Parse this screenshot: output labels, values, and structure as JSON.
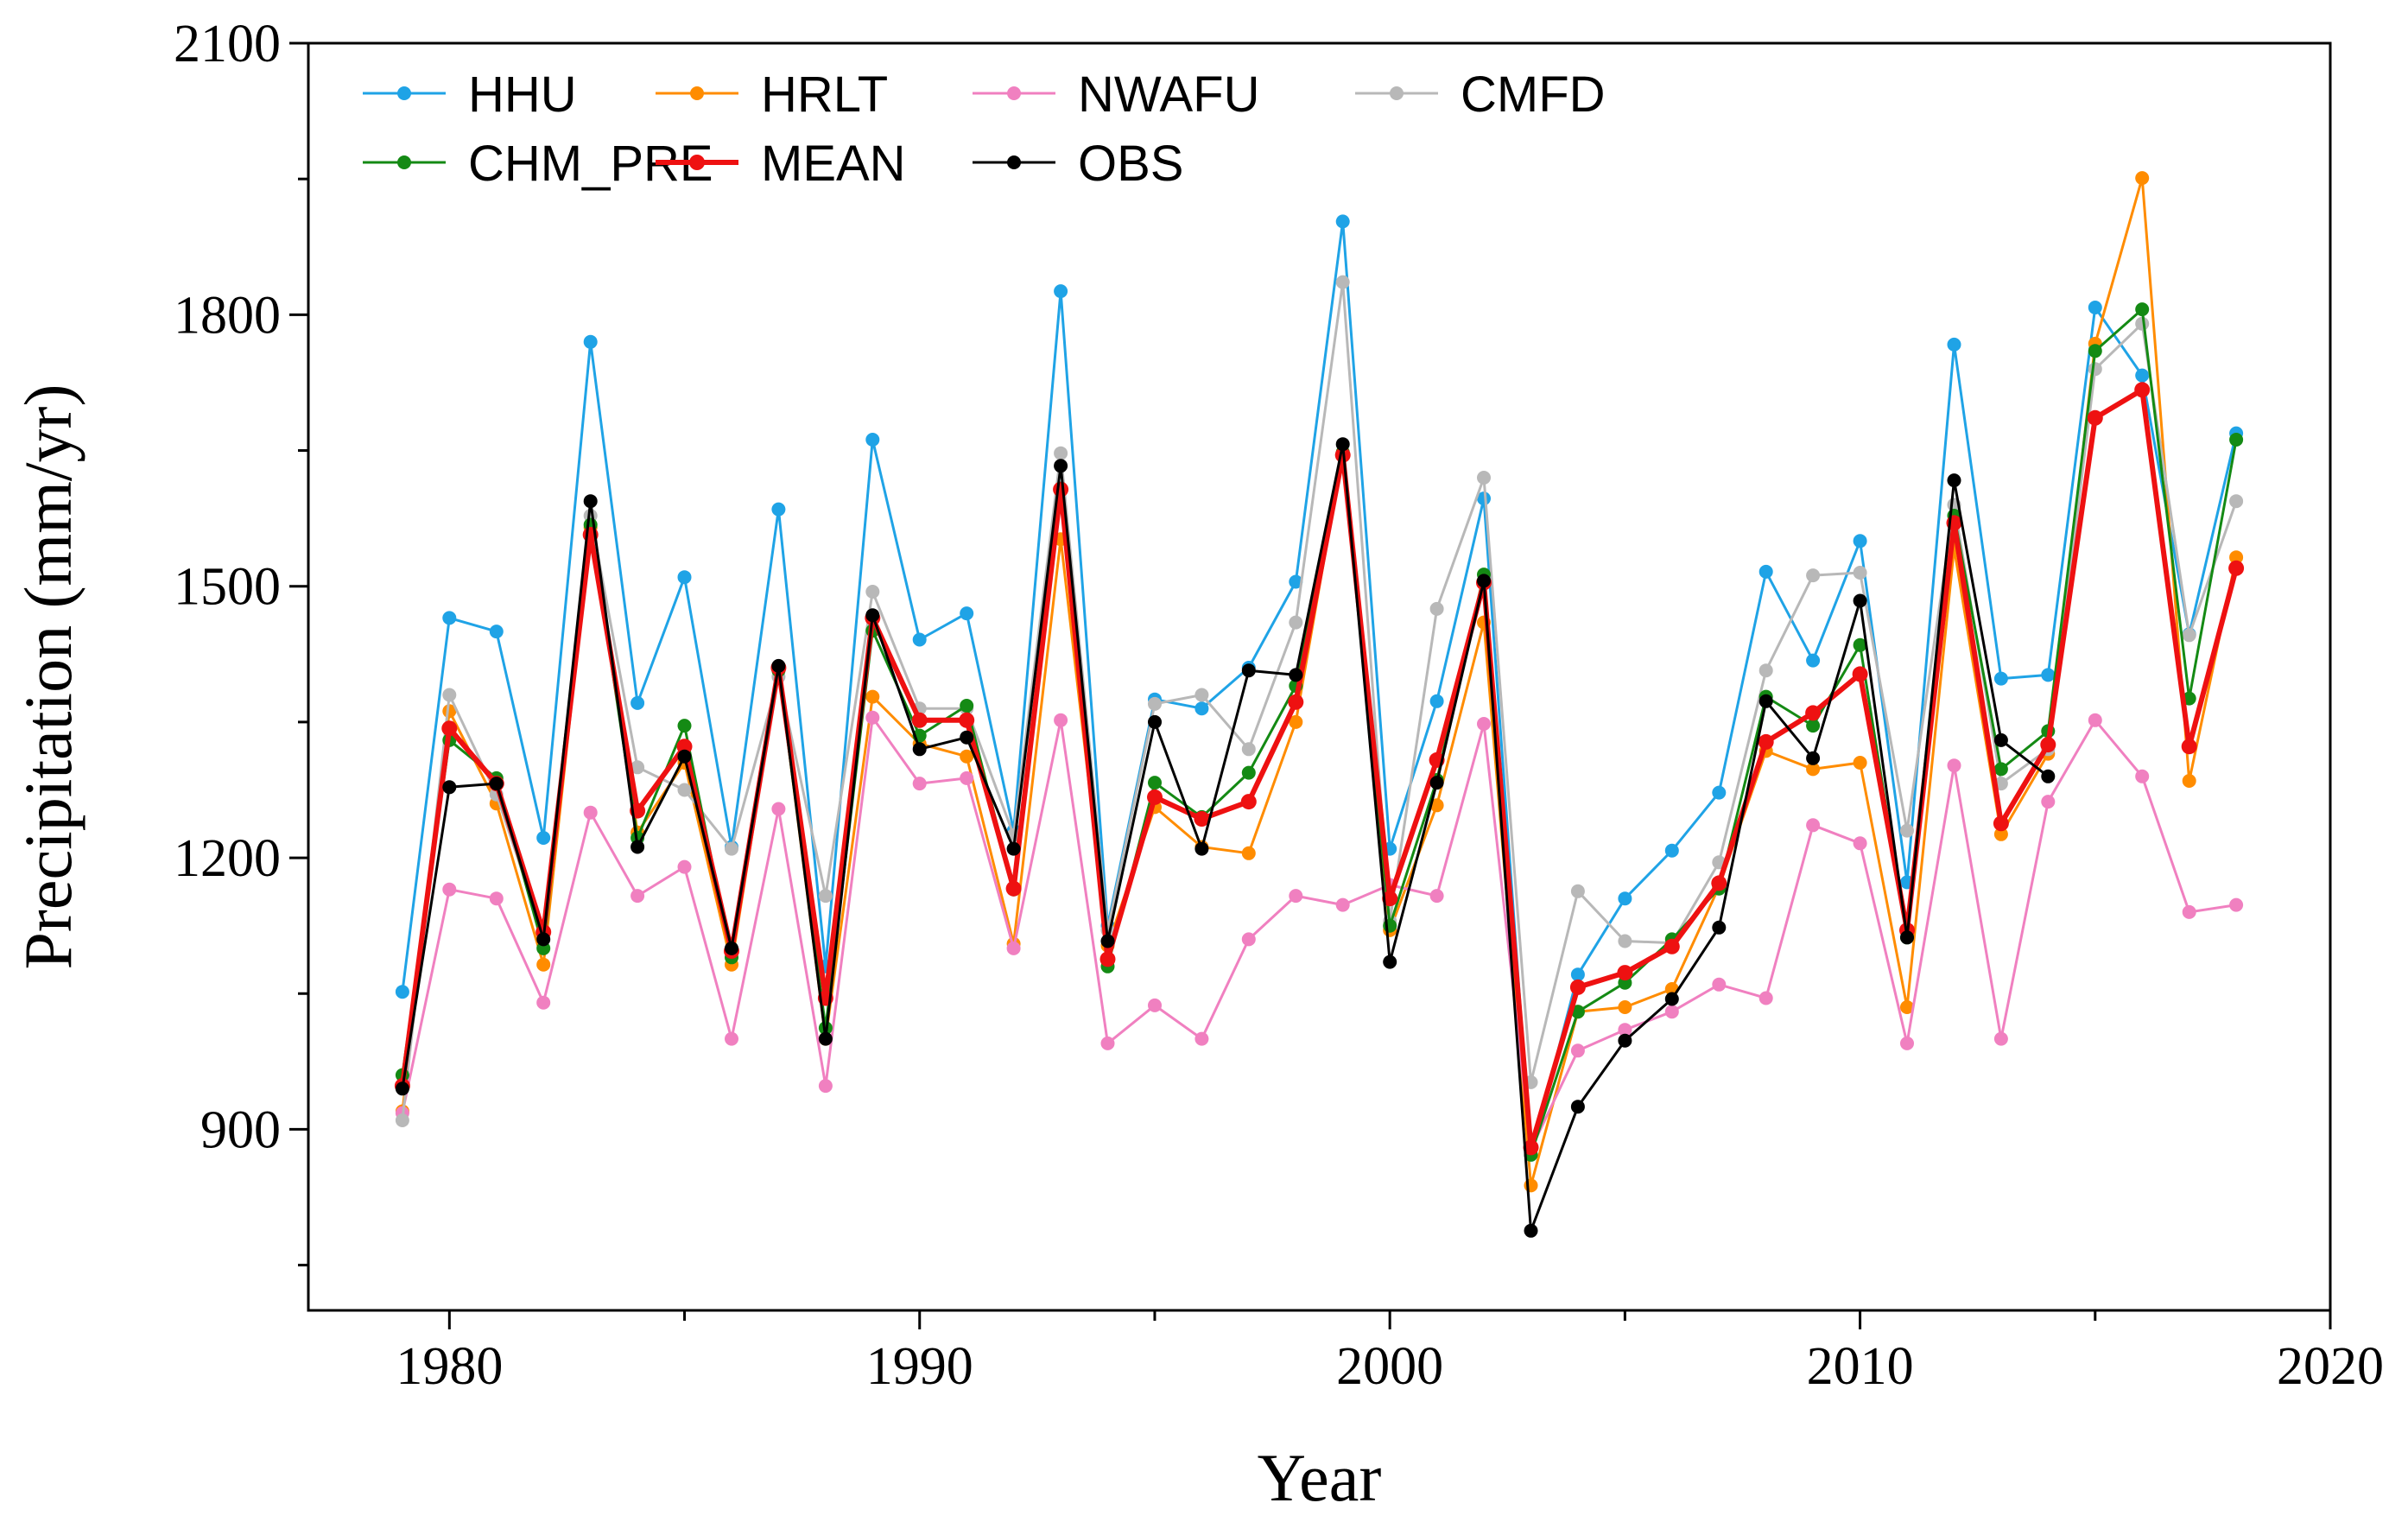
{
  "chart_data": {
    "type": "line",
    "xlabel": "Year",
    "ylabel": "Precipitation (mm/yr)",
    "xlim": [
      1977,
      2020
    ],
    "ylim": [
      700,
      2100
    ],
    "xticks": [
      1980,
      1990,
      2000,
      2010,
      2020
    ],
    "yticks": [
      900,
      1200,
      1500,
      1800,
      2100
    ],
    "grid": false,
    "legend_position": "top-left",
    "x": [
      1979,
      1980,
      1981,
      1982,
      1983,
      1984,
      1985,
      1986,
      1987,
      1988,
      1989,
      1990,
      1991,
      1992,
      1993,
      1994,
      1995,
      1996,
      1997,
      1998,
      1999,
      2000,
      2001,
      2002,
      2003,
      2004,
      2005,
      2006,
      2007,
      2008,
      2009,
      2010,
      2011,
      2012,
      2013,
      2014,
      2015,
      2016,
      2017,
      2018
    ],
    "series": [
      {
        "name": "HHU",
        "color": "#1fa3e6",
        "line_width": 3,
        "values": [
          1052,
          1465,
          1450,
          1222,
          1770,
          1371,
          1510,
          1212,
          1585,
          1080,
          1662,
          1441,
          1470,
          1230,
          1826,
          1125,
          1375,
          1365,
          1410,
          1505,
          1903,
          1210,
          1373,
          1597,
          872,
          1071,
          1155,
          1208,
          1272,
          1516,
          1418,
          1550,
          1173,
          1767,
          1398,
          1402,
          1808,
          1733,
          1447,
          1669
        ]
      },
      {
        "name": "HRLT",
        "color": "#ff8c00",
        "line_width": 3,
        "values": [
          920,
          1362,
          1260,
          1082,
          1565,
          1228,
          1305,
          1082,
          1410,
          1000,
          1378,
          1326,
          1312,
          1105,
          1552,
          1103,
          1256,
          1212,
          1205,
          1350,
          1648,
          1120,
          1258,
          1460,
          838,
          1030,
          1035,
          1055,
          1168,
          1318,
          1298,
          1305,
          1035,
          1542,
          1226,
          1315,
          1768,
          1951,
          1285,
          1532
        ]
      },
      {
        "name": "NWAFU",
        "color": "#f080c0",
        "line_width": 3,
        "values": [
          918,
          1165,
          1155,
          1040,
          1250,
          1158,
          1190,
          1000,
          1254,
          948,
          1355,
          1282,
          1288,
          1100,
          1352,
          995,
          1037,
          1000,
          1110,
          1158,
          1148,
          1170,
          1158,
          1348,
          878,
          987,
          1010,
          1030,
          1060,
          1045,
          1236,
          1216,
          995,
          1302,
          1000,
          1262,
          1352,
          1290,
          1140,
          1148
        ]
      },
      {
        "name": "CMFD",
        "color": "#b8b8b8",
        "line_width": 3,
        "values": [
          910,
          1380,
          1270,
          1115,
          1578,
          1300,
          1275,
          1210,
          1400,
          1158,
          1494,
          1365,
          1365,
          1225,
          1647,
          1120,
          1370,
          1380,
          1320,
          1460,
          1836,
          1130,
          1475,
          1620,
          952,
          1163,
          1108,
          1106,
          1195,
          1407,
          1512,
          1515,
          1230,
          1590,
          1282,
          1320,
          1740,
          1790,
          1446,
          1594
        ]
      },
      {
        "name": "CHM_PRE",
        "color": "#148a14",
        "line_width": 3,
        "values": [
          960,
          1330,
          1288,
          1100,
          1568,
          1222,
          1346,
          1090,
          1407,
          1012,
          1451,
          1335,
          1368,
          1165,
          1608,
          1080,
          1283,
          1245,
          1294,
          1390,
          1648,
          1125,
          1286,
          1513,
          872,
          1030,
          1062,
          1110,
          1166,
          1378,
          1346,
          1435,
          1112,
          1578,
          1298,
          1340,
          1760,
          1806,
          1376,
          1662
        ]
      },
      {
        "name": "MEAN",
        "color": "#ee1111",
        "line_width": 6,
        "values": [
          948,
          1343,
          1282,
          1118,
          1557,
          1252,
          1323,
          1097,
          1410,
          1045,
          1465,
          1352,
          1352,
          1166,
          1607,
          1088,
          1267,
          1243,
          1262,
          1372,
          1645,
          1155,
          1308,
          1504,
          880,
          1057,
          1073,
          1102,
          1172,
          1328,
          1360,
          1403,
          1120,
          1570,
          1238,
          1325,
          1686,
          1717,
          1323,
          1520
        ]
      },
      {
        "name": "OBS",
        "color": "#000000",
        "line_width": 3,
        "values": [
          945,
          1278,
          1282,
          1110,
          1594,
          1212,
          1312,
          1100,
          1412,
          1000,
          1468,
          1320,
          1333,
          1210,
          1633,
          1108,
          1350,
          1210,
          1407,
          1402,
          1657,
          1085,
          1283,
          1506,
          788,
          925,
          998,
          1044,
          1123,
          1373,
          1310,
          1484,
          1112,
          1617,
          1330,
          1290,
          null,
          null,
          null,
          null
        ]
      }
    ]
  }
}
